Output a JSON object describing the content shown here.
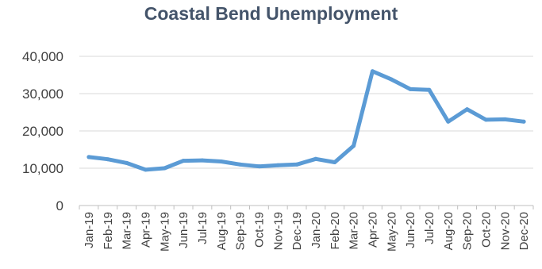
{
  "chart_data": {
    "type": "line",
    "title": "Coastal Bend Unemployment",
    "xlabel": "",
    "ylabel": "",
    "categories": [
      "Jan-19",
      "Feb-19",
      "Mar-19",
      "Apr-19",
      "May-19",
      "Jun-19",
      "Jul-19",
      "Aug-19",
      "Sep-19",
      "Oct-19",
      "Nov-19",
      "Dec-19",
      "Jan-20",
      "Feb-20",
      "Mar-20",
      "Apr-20",
      "May-20",
      "Jun-20",
      "Jul-20",
      "Aug-20",
      "Sep-20",
      "Oct-20",
      "Nov-20",
      "Dec-20"
    ],
    "series": [
      {
        "values": [
          13000,
          12400,
          11400,
          9600,
          10000,
          12000,
          12100,
          11800,
          11000,
          10500,
          10800,
          11000,
          12500,
          11600,
          16000,
          36000,
          33800,
          31200,
          31000,
          22500,
          25800,
          23000,
          23100,
          22500
        ]
      }
    ],
    "ylim": [
      0,
      40000
    ],
    "yticks": [
      "0",
      "10,000",
      "20,000",
      "30,000",
      "40,000"
    ],
    "grid": "horizontal",
    "legend": "none",
    "colors": {
      "line": "#5b9bd5",
      "grid": "#d9d9d9",
      "title": "#44546a"
    }
  }
}
